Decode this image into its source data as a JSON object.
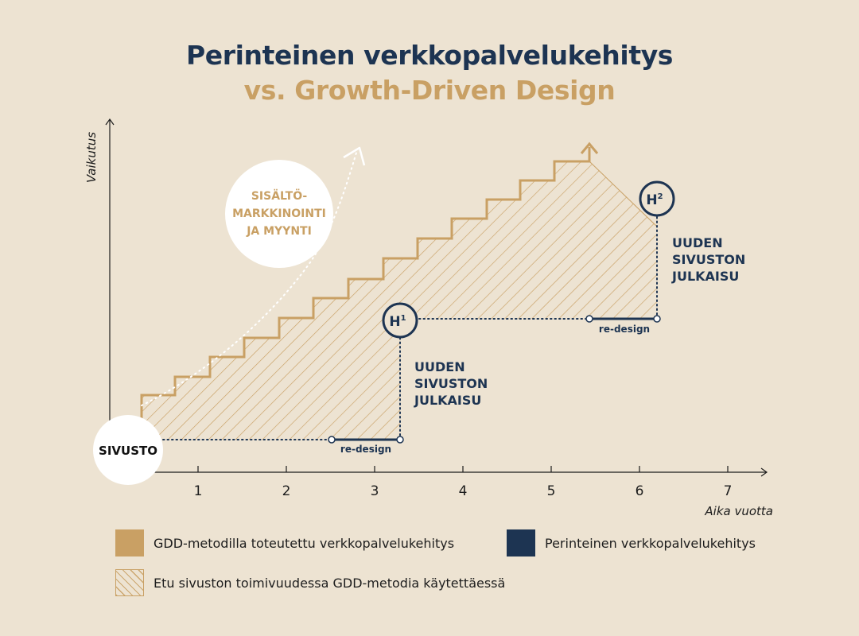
{
  "title": {
    "line1": "Perinteinen verkkopalvelukehitys",
    "line2": "vs. Growth-Driven Design"
  },
  "axes": {
    "y_label": "Vaikutus",
    "x_label": "Aika vuotta",
    "x_ticks": [
      "1",
      "2",
      "3",
      "4",
      "5",
      "6",
      "7"
    ]
  },
  "nodes": {
    "start": "SIVUSTO",
    "marketing": [
      "SISÄLTÖ-",
      "MARKKINOINTI",
      "JA MYYNTI"
    ],
    "h1": "H",
    "h1_sup": "1",
    "h2": "H",
    "h2_sup": "2"
  },
  "annotations": {
    "launch_1": [
      "UUDEN",
      "SIVUSTON",
      "JULKAISU"
    ],
    "launch_2": [
      "UUDEN",
      "SIVUSTON",
      "JULKAISU"
    ],
    "redesign_1": "re-design",
    "redesign_2": "re-design"
  },
  "legend": {
    "gdd": "GDD-metodilla toteutettu verkkopalvelukehitys",
    "traditional": "Perinteinen verkkopalvelukehitys",
    "benefit": "Etu sivuston toimivuudessa GDD-metodia käytettäessä"
  },
  "colors": {
    "background": "#ede3d2",
    "gold": "#c9a064",
    "navy": "#1d3452",
    "white": "#ffffff"
  }
}
